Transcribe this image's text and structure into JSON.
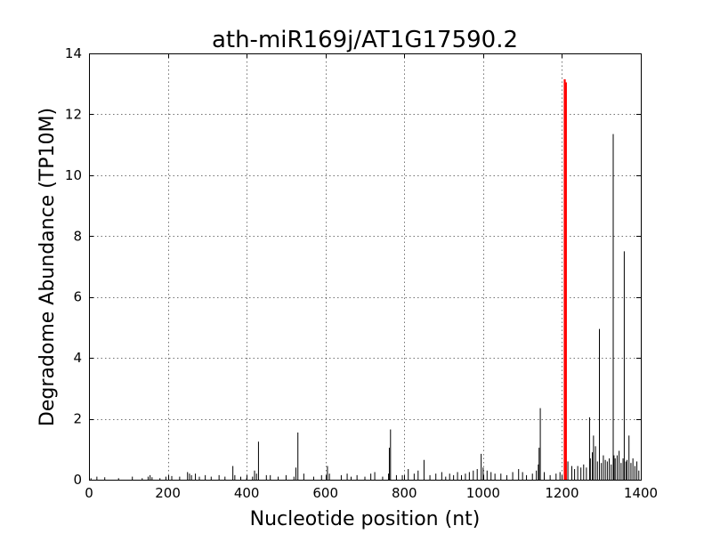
{
  "chart_data": {
    "type": "bar",
    "title": "ath-miR169j/AT1G17590.2",
    "xlabel": "Nucleotide position (nt)",
    "ylabel": "Degradome Abundance (TP10M)",
    "xlim": [
      0,
      1400
    ],
    "ylim": [
      0,
      14
    ],
    "xticks": [
      "0",
      "200",
      "400",
      "600",
      "800",
      "1000",
      "1200",
      "1400"
    ],
    "yticks": [
      "0",
      "2",
      "4",
      "6",
      "8",
      "10",
      "12",
      "14"
    ],
    "grid": true,
    "series": [
      {
        "color": "#000000",
        "x": [
          5,
          20,
          40,
          75,
          110,
          135,
          150,
          155,
          160,
          180,
          195,
          210,
          230,
          250,
          255,
          260,
          270,
          280,
          295,
          310,
          330,
          345,
          365,
          370,
          385,
          400,
          415,
          420,
          425,
          430,
          450,
          460,
          480,
          500,
          520,
          525,
          530,
          545,
          570,
          590,
          605,
          610,
          640,
          655,
          665,
          680,
          700,
          715,
          725,
          745,
          760,
          762,
          765,
          780,
          795,
          810,
          825,
          835,
          850,
          865,
          880,
          895,
          905,
          915,
          925,
          935,
          945,
          955,
          965,
          975,
          985,
          995,
          1000,
          1010,
          1020,
          1030,
          1045,
          1060,
          1075,
          1090,
          1100,
          1110,
          1125,
          1135,
          1140,
          1142,
          1145,
          1155,
          1170,
          1185,
          1195,
          1215,
          1225,
          1232,
          1240,
          1248,
          1255,
          1262,
          1270,
          1272,
          1277,
          1280,
          1285,
          1290,
          1295,
          1300,
          1305,
          1310,
          1315,
          1320,
          1325,
          1330,
          1332,
          1335,
          1340,
          1345,
          1350,
          1355,
          1358,
          1362,
          1365,
          1370,
          1375,
          1380,
          1385,
          1390,
          1395
        ],
        "values": [
          0.05,
          0.1,
          0.08,
          0.05,
          0.1,
          0.05,
          0.1,
          0.15,
          0.08,
          0.05,
          0.1,
          0.12,
          0.1,
          0.25,
          0.2,
          0.15,
          0.2,
          0.1,
          0.15,
          0.1,
          0.15,
          0.1,
          0.45,
          0.15,
          0.1,
          0.05,
          0.1,
          0.3,
          0.2,
          1.25,
          0.15,
          0.15,
          0.1,
          0.15,
          0.1,
          0.4,
          1.55,
          0.2,
          0.1,
          0.15,
          0.45,
          0.2,
          0.15,
          0.2,
          0.1,
          0.15,
          0.1,
          0.2,
          0.25,
          0.1,
          0.2,
          1.05,
          1.65,
          0.15,
          0.15,
          0.35,
          0.2,
          0.3,
          0.65,
          0.15,
          0.2,
          0.25,
          0.1,
          0.2,
          0.15,
          0.25,
          0.15,
          0.2,
          0.25,
          0.3,
          0.35,
          0.85,
          0.4,
          0.3,
          0.25,
          0.2,
          0.2,
          0.15,
          0.25,
          0.35,
          0.25,
          0.15,
          0.2,
          0.3,
          0.5,
          1.05,
          2.35,
          0.25,
          0.15,
          0.2,
          0.25,
          0.6,
          0.45,
          0.35,
          0.45,
          0.4,
          0.5,
          0.4,
          2.05,
          0.7,
          0.9,
          1.45,
          1.1,
          0.6,
          4.95,
          0.55,
          0.8,
          0.65,
          0.6,
          0.7,
          0.5,
          11.35,
          0.8,
          0.7,
          0.8,
          0.95,
          0.55,
          0.7,
          7.5,
          0.6,
          0.65,
          1.45,
          0.55,
          0.7,
          0.45,
          0.6,
          0.3
        ]
      },
      {
        "color": "#ff0000",
        "x": [
          1207,
          1210
        ],
        "values": [
          13.15,
          13.05
        ]
      }
    ]
  }
}
